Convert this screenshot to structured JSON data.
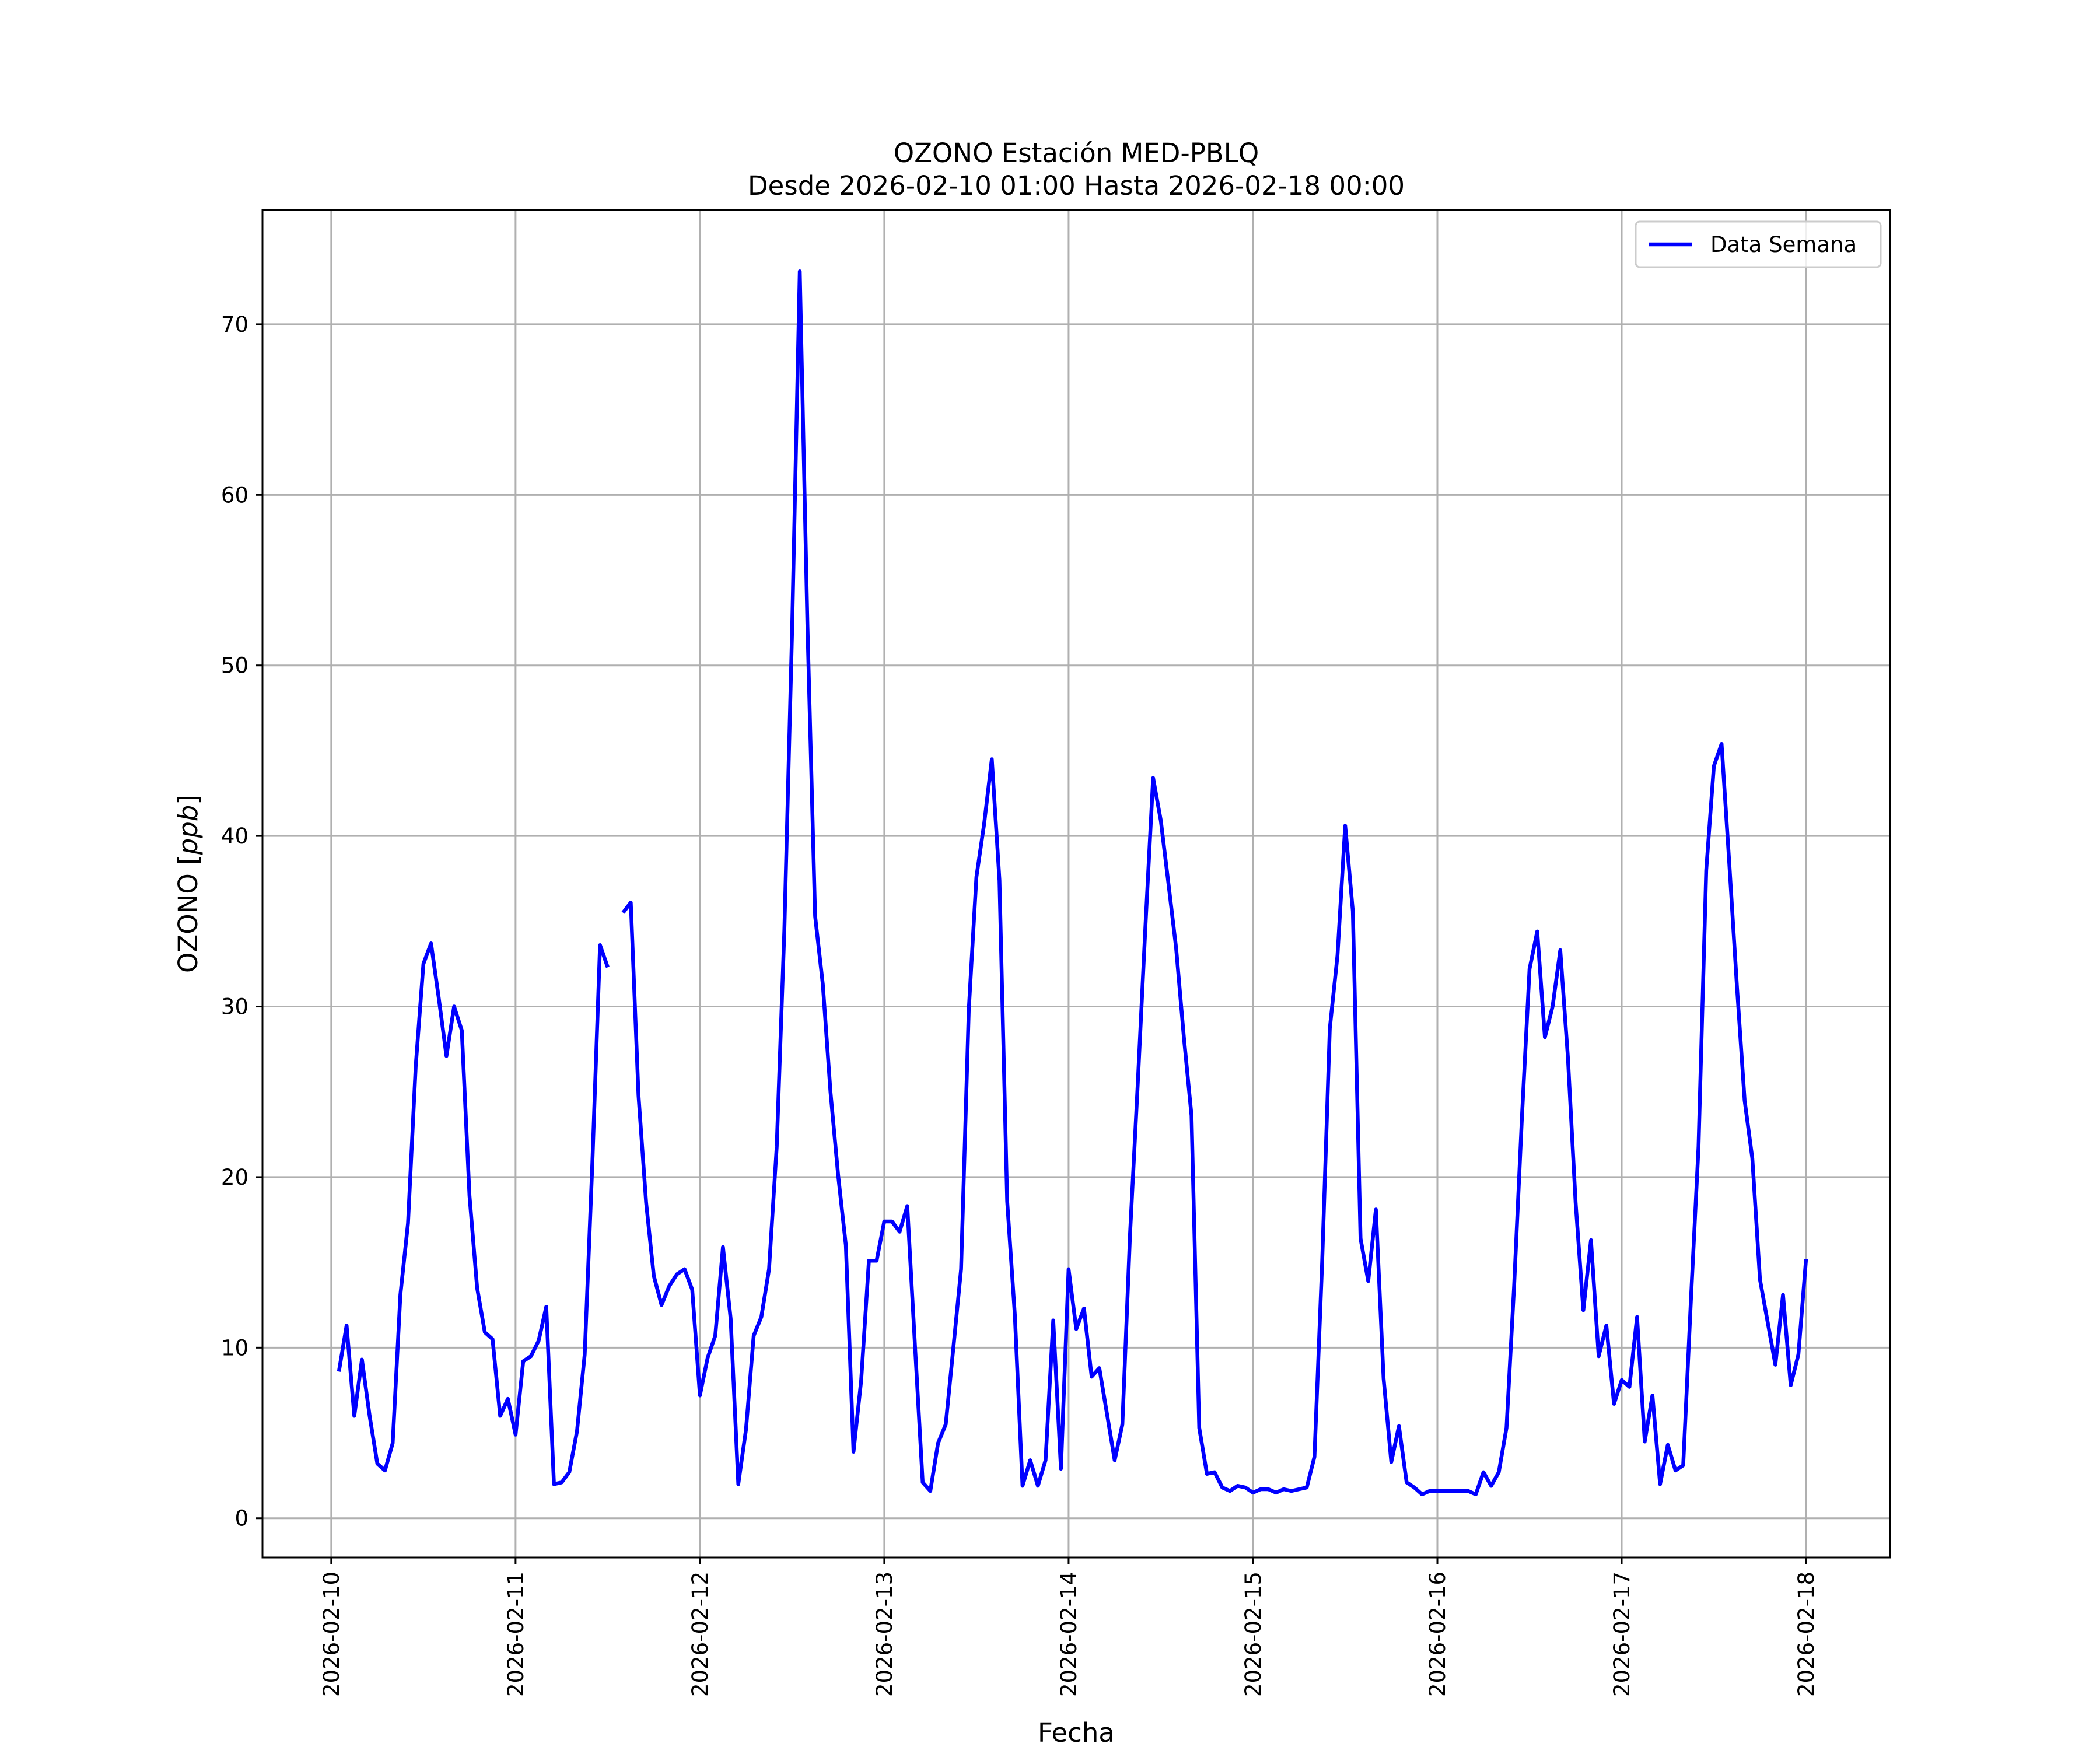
{
  "chart_data": {
    "type": "line",
    "title": "OZONO Estación MED-PBLQ",
    "subtitle": "Desde 2026-02-10 01:00 Hasta 2026-02-18 00:00",
    "xlabel": "Fecha",
    "ylabel": "OZONO [ppb]",
    "ylabel_main": "OZONO [",
    "ylabel_unit": "ppb",
    "ylabel_close": "]",
    "xlim": [
      "2026-02-09 15:03",
      "2026-02-18 10:56"
    ],
    "ylim": [
      -2.3,
      76.7
    ],
    "x_ticks": [
      "2026-02-10",
      "2026-02-11",
      "2026-02-12",
      "2026-02-13",
      "2026-02-14",
      "2026-02-15",
      "2026-02-16",
      "2026-02-17",
      "2026-02-18"
    ],
    "y_ticks": [
      0,
      10,
      20,
      30,
      40,
      50,
      60,
      70
    ],
    "grid": true,
    "legend_position": "upper-right",
    "series": [
      {
        "name": "Data Semana",
        "color": "#0000ff",
        "start": "2026-02-10 01:00",
        "interval_hours": 1,
        "values": [
          8.6,
          11.3,
          6.0,
          9.3,
          6.0,
          3.2,
          2.8,
          4.4,
          13.1,
          17.3,
          26.5,
          32.5,
          33.7,
          30.5,
          27.1,
          30.0,
          28.6,
          18.9,
          13.5,
          10.9,
          10.5,
          6.0,
          7.0,
          4.9,
          9.2,
          9.5,
          10.4,
          12.4,
          2.0,
          2.1,
          2.7,
          5.1,
          9.6,
          20.8,
          33.6,
          32.3,
          null,
          35.5,
          36.1,
          24.8,
          18.5,
          14.2,
          12.5,
          13.6,
          14.3,
          14.6,
          13.4,
          7.2,
          9.4,
          10.7,
          15.9,
          11.7,
          2.0,
          5.2,
          10.7,
          11.8,
          14.6,
          21.8,
          34.5,
          52.0,
          73.1,
          52.4,
          35.3,
          31.3,
          25.0,
          20.1,
          16.0,
          3.9,
          8.1,
          15.1,
          15.1,
          17.4,
          17.4,
          16.8,
          18.3,
          10.1,
          2.1,
          1.6,
          4.4,
          5.5,
          10.0,
          14.6,
          29.8,
          37.6,
          40.7,
          44.5,
          37.4,
          18.6,
          11.9,
          1.9,
          3.4,
          1.9,
          3.4,
          11.6,
          2.9,
          14.6,
          11.1,
          12.3,
          8.3,
          8.8,
          6.1,
          3.4,
          5.5,
          16.7,
          25.5,
          34.7,
          43.4,
          40.9,
          37.2,
          33.4,
          28.2,
          23.6,
          5.3,
          2.6,
          2.7,
          1.8,
          1.6,
          1.9,
          1.8,
          1.5,
          1.7,
          1.7,
          1.5,
          1.7,
          1.6,
          1.7,
          1.8,
          3.6,
          15.0,
          28.7,
          33.0,
          40.6,
          35.6,
          16.4,
          13.9,
          18.1,
          8.2,
          3.3,
          5.4,
          2.1,
          1.8,
          1.4,
          1.6,
          1.6,
          1.6,
          1.6,
          1.6,
          1.6,
          1.4,
          2.7,
          1.9,
          2.7,
          5.3,
          13.7,
          23.4,
          32.2,
          34.4,
          28.2,
          30.0,
          33.3,
          27.0,
          18.5,
          12.2,
          16.3,
          9.5,
          11.3,
          6.7,
          8.1,
          7.7,
          11.8,
          4.5,
          7.2,
          2.0,
          4.3,
          2.8,
          3.1,
          12.7,
          21.8,
          38.0,
          44.1,
          45.4,
          38.4,
          31.2,
          24.5,
          21.1,
          14.0,
          11.5,
          9.0,
          13.1,
          7.8,
          9.6,
          15.2
        ]
      }
    ]
  }
}
